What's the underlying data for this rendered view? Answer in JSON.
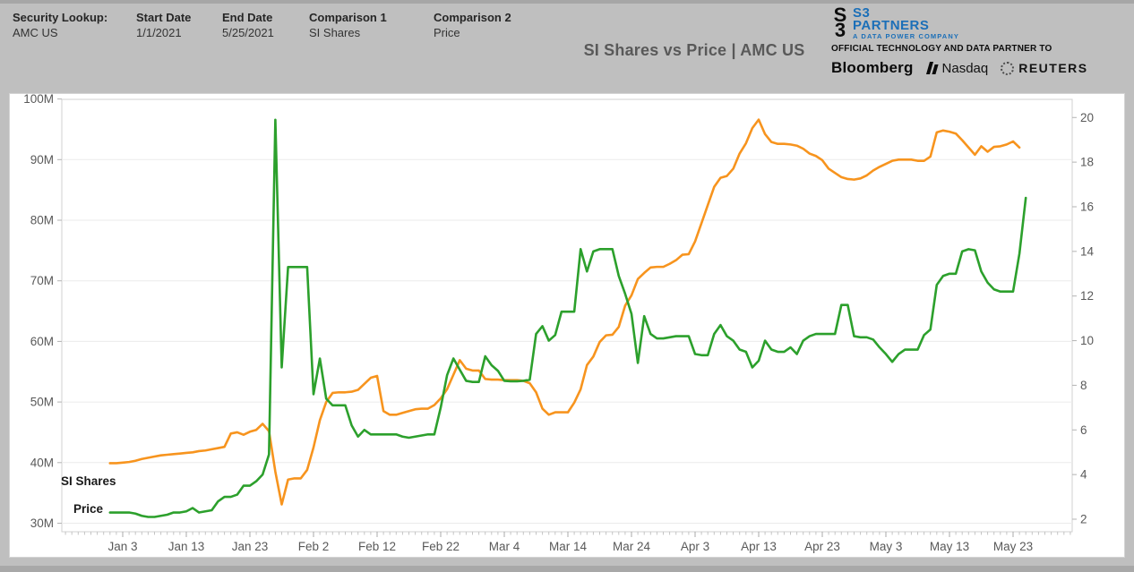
{
  "header": {
    "fields": [
      {
        "label": "Security Lookup:",
        "value": "AMC US"
      },
      {
        "label": "Start Date",
        "value": "1/1/2021"
      },
      {
        "label": "End Date",
        "value": "5/25/2021"
      },
      {
        "label": "Comparison 1",
        "value": "SI Shares"
      },
      {
        "label": "Comparison 2",
        "value": "Price"
      }
    ],
    "title": "SI Shares vs Price | AMC US"
  },
  "branding": {
    "glyph_top": "S",
    "glyph_bottom": "3",
    "name_line1": "S3",
    "name_line2": "PARTNERS",
    "tagline": "A DATA POWER COMPANY",
    "partner_line": "OFFICIAL TECHNOLOGY AND DATA PARTNER TO",
    "partner1": "Bloomberg",
    "partner2": "Nasdaq",
    "partner3": "REUTERS",
    "brand_color": "#1b6fb8"
  },
  "chart_data": {
    "type": "line",
    "title": "SI Shares vs Price | AMC US",
    "x_unit": "calendar days, daily points from 1/1/2021 through 5/25/2021",
    "start_date": "1/1/2021",
    "end_date": "5/25/2021",
    "x_tick_labels": [
      "Jan 3",
      "Jan 13",
      "Jan 23",
      "Feb 2",
      "Feb 12",
      "Feb 22",
      "Mar 4",
      "Mar 14",
      "Mar 24",
      "Apr 3",
      "Apr 13",
      "Apr 23",
      "May 3",
      "May 13",
      "May 23"
    ],
    "x_tick_day_index": [
      2,
      12,
      22,
      32,
      42,
      52,
      62,
      72,
      82,
      92,
      102,
      112,
      122,
      132,
      142
    ],
    "left_axis": {
      "title": "SI Shares",
      "tick_labels": [
        "100M",
        "90M",
        "80M",
        "70M",
        "60M",
        "50M",
        "40M",
        "30M"
      ],
      "tick_values_millions": [
        100,
        90,
        80,
        70,
        60,
        50,
        40,
        30
      ],
      "min_millions": 30,
      "max_millions": 100
    },
    "right_axis": {
      "title": "Price",
      "tick_values": [
        20,
        18,
        16,
        14,
        12,
        10,
        8,
        6,
        4,
        2
      ],
      "min": 2,
      "max": 20
    },
    "grid": "horizontal, light gray; dense daily minor ticks along bottom axis",
    "legend": "in-plot labels at left: SI Shares (orange), Price (green)",
    "series": [
      {
        "name": "SI Shares",
        "color": "#f7941e",
        "axis": "left",
        "unit": "shares (millions)",
        "label_text": "SI Shares",
        "values": [
          39.9,
          39.9,
          40.0,
          40.1,
          40.3,
          40.6,
          40.8,
          41.0,
          41.2,
          41.3,
          41.4,
          41.5,
          41.6,
          41.7,
          41.9,
          42.0,
          42.2,
          42.4,
          42.6,
          44.8,
          45.0,
          44.6,
          45.1,
          45.4,
          46.4,
          45.2,
          38.5,
          33.1,
          37.2,
          37.4,
          37.4,
          38.8,
          42.5,
          47.0,
          50.0,
          51.5,
          51.6,
          51.6,
          51.7,
          52.0,
          53.0,
          54.0,
          54.3,
          48.5,
          47.9,
          47.9,
          48.2,
          48.5,
          48.8,
          48.9,
          48.9,
          49.5,
          50.6,
          52.1,
          54.5,
          56.9,
          55.5,
          55.2,
          55.2,
          53.8,
          53.7,
          53.7,
          53.6,
          53.6,
          53.6,
          53.5,
          53.1,
          51.6,
          48.9,
          47.9,
          48.3,
          48.3,
          48.3,
          49.9,
          52.1,
          56.1,
          57.5,
          59.9,
          61.0,
          61.1,
          62.4,
          65.9,
          67.6,
          70.3,
          71.3,
          72.2,
          72.3,
          72.3,
          72.8,
          73.4,
          74.3,
          74.4,
          76.5,
          79.5,
          82.5,
          85.5,
          87.0,
          87.3,
          88.5,
          91.0,
          92.7,
          95.2,
          96.6,
          94.2,
          92.9,
          92.6,
          92.6,
          92.5,
          92.3,
          91.8,
          91.0,
          90.6,
          89.9,
          88.5,
          87.8,
          87.1,
          86.8,
          86.7,
          86.9,
          87.4,
          88.2,
          88.8,
          89.3,
          89.8,
          90.0,
          90.0,
          90.0,
          89.8,
          89.8,
          90.5,
          94.5,
          94.8,
          94.6,
          94.3,
          93.2,
          92.0,
          90.8,
          92.2,
          91.3,
          92.1,
          92.2,
          92.5,
          93.0,
          92.0,
          null
        ]
      },
      {
        "name": "Price",
        "color": "#2ca02c",
        "axis": "right",
        "unit": "USD",
        "label_text": "Price",
        "values": [
          2.3,
          2.3,
          2.3,
          2.3,
          2.25,
          2.15,
          2.1,
          2.1,
          2.15,
          2.2,
          2.3,
          2.3,
          2.35,
          2.5,
          2.3,
          2.35,
          2.4,
          2.8,
          3.0,
          3.0,
          3.1,
          3.5,
          3.5,
          3.7,
          4.0,
          4.9,
          19.9,
          8.8,
          13.3,
          13.3,
          13.3,
          13.3,
          7.6,
          9.2,
          7.4,
          7.1,
          7.1,
          7.1,
          6.2,
          5.7,
          6.0,
          5.8,
          5.8,
          5.8,
          5.8,
          5.8,
          5.7,
          5.65,
          5.7,
          5.75,
          5.8,
          5.8,
          7.0,
          8.45,
          9.2,
          8.7,
          8.2,
          8.15,
          8.15,
          9.3,
          8.9,
          8.65,
          8.2,
          8.18,
          8.18,
          8.2,
          8.25,
          10.3,
          10.65,
          10.0,
          10.25,
          11.3,
          11.3,
          11.3,
          14.1,
          13.1,
          14.0,
          14.1,
          14.1,
          14.1,
          12.9,
          12.1,
          11.2,
          9.0,
          11.1,
          10.3,
          10.1,
          10.1,
          10.15,
          10.2,
          10.2,
          10.2,
          9.4,
          9.35,
          9.35,
          10.3,
          10.7,
          10.2,
          10.0,
          9.6,
          9.5,
          8.8,
          9.1,
          10.0,
          9.6,
          9.5,
          9.5,
          9.7,
          9.4,
          10.0,
          10.2,
          10.3,
          10.3,
          10.3,
          10.3,
          11.6,
          11.6,
          10.2,
          10.15,
          10.15,
          10.05,
          9.7,
          9.4,
          9.05,
          9.4,
          9.6,
          9.6,
          9.6,
          10.25,
          10.5,
          12.5,
          12.9,
          13.0,
          13.0,
          14.0,
          14.1,
          14.05,
          13.1,
          12.6,
          12.3,
          12.2,
          12.2,
          12.2,
          13.9,
          16.4
        ]
      }
    ],
    "annotations": {
      "si_peak": {
        "date": "Apr 13",
        "value_millions": 96.6
      },
      "si_trough": {
        "date": "Jan 28",
        "value_millions": 33.1
      },
      "price_peak": {
        "date": "Jan 27",
        "value": 19.9
      },
      "price_last": {
        "date": "May 25",
        "value": 16.4
      }
    }
  },
  "colors": {
    "page_background": "#bfbfbf",
    "panel_background": "#ffffff",
    "grid": "#ebebeb",
    "axis_text": "#595959",
    "si_line": "#f7941e",
    "price_line": "#2ca02c"
  }
}
